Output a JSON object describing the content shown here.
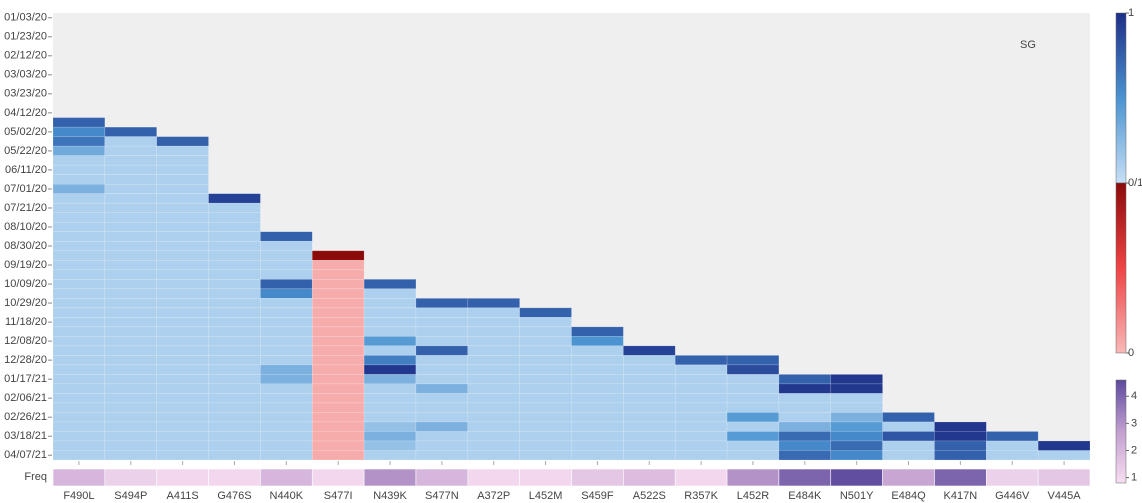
{
  "chart_data": {
    "type": "heatmap",
    "annotation": "SG",
    "y": [
      "01/03/20",
      null,
      "01/23/20",
      null,
      "02/12/20",
      null,
      "03/03/20",
      null,
      "03/23/20",
      null,
      "04/12/20",
      null,
      "05/02/20",
      null,
      "05/22/20",
      null,
      "06/11/20",
      null,
      "07/01/20",
      null,
      "07/21/20",
      null,
      "08/10/20",
      null,
      "08/30/20",
      null,
      "09/19/20",
      null,
      "10/09/20",
      null,
      "10/29/20",
      null,
      "11/18/20",
      null,
      "12/08/20",
      null,
      "12/28/20",
      null,
      "01/17/21",
      null,
      "02/06/21",
      null,
      "02/26/21",
      null,
      "03/18/21",
      null,
      "04/07/21"
    ],
    "blue_scale": [
      "#c6dff5",
      "#4b93d1",
      "#1d2e87"
    ],
    "red_scale": [
      "#f8b8b8",
      "#ef4444",
      "#8b0a0a"
    ],
    "series": [
      {
        "name": "F490L",
        "colorscale": "blue",
        "values": [
          null,
          null,
          null,
          null,
          null,
          null,
          null,
          null,
          null,
          null,
          null,
          0.75,
          0.55,
          0.65,
          0.35,
          0.1,
          0.1,
          0.1,
          0.3,
          0.1,
          0.1,
          0.1,
          0.1,
          0.1,
          0.1,
          0.1,
          0.1,
          0.1,
          0.1,
          0.1,
          0.1,
          0.1,
          0.1,
          0.1,
          0.1,
          0.1,
          0.1,
          0.1,
          0.1,
          0.1,
          0.1,
          0.1,
          0.1,
          0.1,
          0.1,
          0.1,
          0.1
        ]
      },
      {
        "name": "S494P",
        "colorscale": "blue",
        "values": [
          null,
          null,
          null,
          null,
          null,
          null,
          null,
          null,
          null,
          null,
          null,
          null,
          0.75,
          0.1,
          0.1,
          0.1,
          0.1,
          0.1,
          0.1,
          0.1,
          0.1,
          0.1,
          0.1,
          0.1,
          0.1,
          0.1,
          0.1,
          0.1,
          0.1,
          0.1,
          0.1,
          0.1,
          0.1,
          0.1,
          0.1,
          0.1,
          0.1,
          0.1,
          0.1,
          0.1,
          0.1,
          0.1,
          0.1,
          0.1,
          0.1,
          0.1,
          0.1
        ]
      },
      {
        "name": "A411S",
        "colorscale": "blue",
        "values": [
          null,
          null,
          null,
          null,
          null,
          null,
          null,
          null,
          null,
          null,
          null,
          null,
          null,
          0.75,
          0.1,
          0.1,
          0.1,
          0.1,
          0.1,
          0.1,
          0.1,
          0.1,
          0.1,
          0.1,
          0.1,
          0.1,
          0.1,
          0.1,
          0.1,
          0.1,
          0.1,
          0.1,
          0.1,
          0.1,
          0.1,
          0.1,
          0.1,
          0.1,
          0.1,
          0.1,
          0.1,
          0.1,
          0.1,
          0.1,
          0.1,
          0.1,
          0.1
        ]
      },
      {
        "name": "G476S",
        "colorscale": "blue",
        "values": [
          null,
          null,
          null,
          null,
          null,
          null,
          null,
          null,
          null,
          null,
          null,
          null,
          null,
          null,
          null,
          null,
          null,
          null,
          null,
          0.9,
          0.1,
          0.1,
          0.1,
          0.1,
          0.1,
          0.1,
          0.1,
          0.1,
          0.1,
          0.1,
          0.1,
          0.1,
          0.1,
          0.1,
          0.1,
          0.1,
          0.1,
          0.1,
          0.1,
          0.1,
          0.1,
          0.1,
          0.1,
          0.1,
          0.1,
          0.1,
          0.1
        ]
      },
      {
        "name": "N440K",
        "colorscale": "blue",
        "values": [
          null,
          null,
          null,
          null,
          null,
          null,
          null,
          null,
          null,
          null,
          null,
          null,
          null,
          null,
          null,
          null,
          null,
          null,
          null,
          null,
          null,
          null,
          null,
          0.75,
          0.1,
          0.1,
          0.1,
          0.1,
          0.75,
          0.55,
          0.1,
          0.1,
          0.1,
          0.1,
          0.1,
          0.1,
          0.1,
          0.3,
          0.3,
          0.1,
          0.1,
          0.1,
          0.1,
          0.1,
          0.1,
          0.1,
          0.1
        ]
      },
      {
        "name": "S477I",
        "colorscale": "red",
        "values": [
          null,
          null,
          null,
          null,
          null,
          null,
          null,
          null,
          null,
          null,
          null,
          null,
          null,
          null,
          null,
          null,
          null,
          null,
          null,
          null,
          null,
          null,
          null,
          null,
          null,
          1,
          0.05,
          0.05,
          0.05,
          0.05,
          0.05,
          0.05,
          0.05,
          0.05,
          0.05,
          0.05,
          0.05,
          0.05,
          0.05,
          0.05,
          0.05,
          0.05,
          0.05,
          0.05,
          0.05,
          0.05,
          0.05
        ]
      },
      {
        "name": "N439K",
        "colorscale": "blue",
        "values": [
          null,
          null,
          null,
          null,
          null,
          null,
          null,
          null,
          null,
          null,
          null,
          null,
          null,
          null,
          null,
          null,
          null,
          null,
          null,
          null,
          null,
          null,
          null,
          null,
          null,
          null,
          null,
          null,
          0.75,
          0.1,
          0.1,
          0.1,
          0.1,
          0.1,
          0.45,
          0.1,
          0.6,
          0.95,
          0.3,
          0.1,
          0.1,
          0.1,
          0.1,
          0.2,
          0.3,
          0.2,
          0.1
        ]
      },
      {
        "name": "S477N",
        "colorscale": "blue",
        "values": [
          null,
          null,
          null,
          null,
          null,
          null,
          null,
          null,
          null,
          null,
          null,
          null,
          null,
          null,
          null,
          null,
          null,
          null,
          null,
          null,
          null,
          null,
          null,
          null,
          null,
          null,
          null,
          null,
          null,
          null,
          0.75,
          0.1,
          0.1,
          0.1,
          0.1,
          0.75,
          0.1,
          0.1,
          0.1,
          0.3,
          0.1,
          0.1,
          0.1,
          0.3,
          0.1,
          0.1,
          0.1
        ]
      },
      {
        "name": "A372P",
        "colorscale": "blue",
        "values": [
          null,
          null,
          null,
          null,
          null,
          null,
          null,
          null,
          null,
          null,
          null,
          null,
          null,
          null,
          null,
          null,
          null,
          null,
          null,
          null,
          null,
          null,
          null,
          null,
          null,
          null,
          null,
          null,
          null,
          null,
          0.75,
          0.1,
          0.1,
          0.1,
          0.1,
          0.1,
          0.1,
          0.1,
          0.1,
          0.1,
          0.1,
          0.1,
          0.1,
          0.1,
          0.1,
          0.1,
          0.1
        ]
      },
      {
        "name": "L452M",
        "colorscale": "blue",
        "values": [
          null,
          null,
          null,
          null,
          null,
          null,
          null,
          null,
          null,
          null,
          null,
          null,
          null,
          null,
          null,
          null,
          null,
          null,
          null,
          null,
          null,
          null,
          null,
          null,
          null,
          null,
          null,
          null,
          null,
          null,
          null,
          0.75,
          0.1,
          0.1,
          0.1,
          0.1,
          0.1,
          0.1,
          0.1,
          0.1,
          0.1,
          0.1,
          0.1,
          0.1,
          0.1,
          0.1,
          0.1
        ]
      },
      {
        "name": "S459F",
        "colorscale": "blue",
        "values": [
          null,
          null,
          null,
          null,
          null,
          null,
          null,
          null,
          null,
          null,
          null,
          null,
          null,
          null,
          null,
          null,
          null,
          null,
          null,
          null,
          null,
          null,
          null,
          null,
          null,
          null,
          null,
          null,
          null,
          null,
          null,
          null,
          null,
          0.75,
          0.5,
          0.1,
          0.1,
          0.1,
          0.1,
          0.1,
          0.1,
          0.1,
          0.1,
          0.1,
          0.1,
          0.1,
          0.1
        ]
      },
      {
        "name": "A522S",
        "colorscale": "blue",
        "values": [
          null,
          null,
          null,
          null,
          null,
          null,
          null,
          null,
          null,
          null,
          null,
          null,
          null,
          null,
          null,
          null,
          null,
          null,
          null,
          null,
          null,
          null,
          null,
          null,
          null,
          null,
          null,
          null,
          null,
          null,
          null,
          null,
          null,
          null,
          null,
          0.9,
          0.1,
          0.1,
          0.1,
          0.1,
          0.1,
          0.1,
          0.1,
          0.1,
          0.1,
          0.1,
          0.1
        ]
      },
      {
        "name": "R357K",
        "colorscale": "blue",
        "values": [
          null,
          null,
          null,
          null,
          null,
          null,
          null,
          null,
          null,
          null,
          null,
          null,
          null,
          null,
          null,
          null,
          null,
          null,
          null,
          null,
          null,
          null,
          null,
          null,
          null,
          null,
          null,
          null,
          null,
          null,
          null,
          null,
          null,
          null,
          null,
          null,
          0.75,
          0.1,
          0.1,
          0.1,
          0.1,
          0.1,
          0.1,
          0.1,
          0.1,
          0.1,
          0.1
        ]
      },
      {
        "name": "L452R",
        "colorscale": "blue",
        "values": [
          null,
          null,
          null,
          null,
          null,
          null,
          null,
          null,
          null,
          null,
          null,
          null,
          null,
          null,
          null,
          null,
          null,
          null,
          null,
          null,
          null,
          null,
          null,
          null,
          null,
          null,
          null,
          null,
          null,
          null,
          null,
          null,
          null,
          null,
          null,
          null,
          0.75,
          0.85,
          0.1,
          0.1,
          0.1,
          0.1,
          0.45,
          0.1,
          0.45,
          0.1,
          0.1
        ]
      },
      {
        "name": "E484K",
        "colorscale": "blue",
        "values": [
          null,
          null,
          null,
          null,
          null,
          null,
          null,
          null,
          null,
          null,
          null,
          null,
          null,
          null,
          null,
          null,
          null,
          null,
          null,
          null,
          null,
          null,
          null,
          null,
          null,
          null,
          null,
          null,
          null,
          null,
          null,
          null,
          null,
          null,
          null,
          null,
          null,
          null,
          0.75,
          0.95,
          0.1,
          0.1,
          0.1,
          0.3,
          0.7,
          0.55,
          0.7
        ]
      },
      {
        "name": "N501Y",
        "colorscale": "blue",
        "values": [
          null,
          null,
          null,
          null,
          null,
          null,
          null,
          null,
          null,
          null,
          null,
          null,
          null,
          null,
          null,
          null,
          null,
          null,
          null,
          null,
          null,
          null,
          null,
          null,
          null,
          null,
          null,
          null,
          null,
          null,
          null,
          null,
          null,
          null,
          null,
          null,
          null,
          null,
          0.95,
          0.95,
          0.1,
          0.1,
          0.3,
          0.45,
          0.55,
          0.7,
          0.55
        ]
      },
      {
        "name": "E484Q",
        "colorscale": "blue",
        "values": [
          null,
          null,
          null,
          null,
          null,
          null,
          null,
          null,
          null,
          null,
          null,
          null,
          null,
          null,
          null,
          null,
          null,
          null,
          null,
          null,
          null,
          null,
          null,
          null,
          null,
          null,
          null,
          null,
          null,
          null,
          null,
          null,
          null,
          null,
          null,
          null,
          null,
          null,
          null,
          null,
          null,
          null,
          0.75,
          0.1,
          0.8,
          0.1,
          0.1
        ]
      },
      {
        "name": "K417N",
        "colorscale": "blue",
        "values": [
          null,
          null,
          null,
          null,
          null,
          null,
          null,
          null,
          null,
          null,
          null,
          null,
          null,
          null,
          null,
          null,
          null,
          null,
          null,
          null,
          null,
          null,
          null,
          null,
          null,
          null,
          null,
          null,
          null,
          null,
          null,
          null,
          null,
          null,
          null,
          null,
          null,
          null,
          null,
          null,
          null,
          null,
          null,
          0.95,
          0.95,
          0.75,
          0.75
        ]
      },
      {
        "name": "G446V",
        "colorscale": "blue",
        "values": [
          null,
          null,
          null,
          null,
          null,
          null,
          null,
          null,
          null,
          null,
          null,
          null,
          null,
          null,
          null,
          null,
          null,
          null,
          null,
          null,
          null,
          null,
          null,
          null,
          null,
          null,
          null,
          null,
          null,
          null,
          null,
          null,
          null,
          null,
          null,
          null,
          null,
          null,
          null,
          null,
          null,
          null,
          null,
          null,
          0.75,
          0.1,
          0.1
        ]
      },
      {
        "name": "V445A",
        "colorscale": "blue",
        "values": [
          null,
          null,
          null,
          null,
          null,
          null,
          null,
          null,
          null,
          null,
          null,
          null,
          null,
          null,
          null,
          null,
          null,
          null,
          null,
          null,
          null,
          null,
          null,
          null,
          null,
          null,
          null,
          null,
          null,
          null,
          null,
          null,
          null,
          null,
          null,
          null,
          null,
          null,
          null,
          null,
          null,
          null,
          null,
          null,
          null,
          0.95,
          0.1
        ]
      }
    ],
    "colorbar": {
      "lim": [
        0,
        2
      ],
      "ticks": [
        {
          "value": 2,
          "label": "1"
        },
        {
          "value": 1,
          "label": "0/1"
        },
        {
          "value": 0,
          "label": "0"
        }
      ]
    },
    "freq": {
      "label": "Freq",
      "values": [
        2,
        1.2,
        1,
        1,
        2,
        1,
        3,
        2,
        1,
        1,
        1.5,
        1.8,
        1,
        3,
        4,
        4.5,
        2.5,
        4,
        1.2,
        1.5
      ],
      "colors": [
        "#f7def1",
        "#c39fd0",
        "#5c4a9e"
      ],
      "zlim": [
        0.8,
        4.6
      ],
      "ticks": [
        1,
        2,
        3,
        4
      ]
    }
  }
}
